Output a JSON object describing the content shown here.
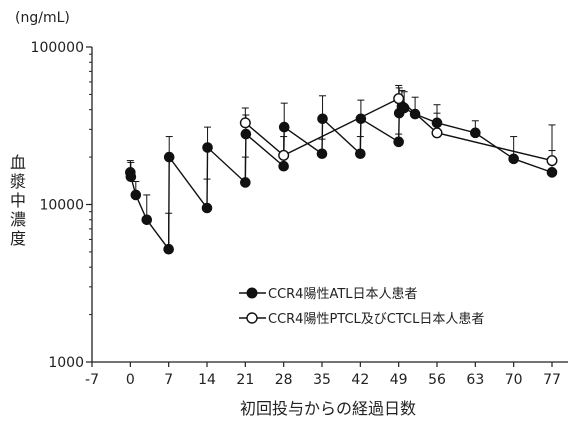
{
  "chart_data": {
    "type": "line",
    "y_unit_label": "(ng/mL)",
    "xlabel": "初回投与からの経過日数",
    "ylabel": "血漿中濃度",
    "y_scale": "log",
    "ylim": [
      1000,
      100000
    ],
    "y_ticks": [
      1000,
      10000,
      100000
    ],
    "y_tick_labels": [
      "1000",
      "10000",
      "100000"
    ],
    "xlim": [
      -7,
      80
    ],
    "x_ticks": [
      -7,
      0,
      7,
      14,
      21,
      28,
      35,
      42,
      49,
      56,
      63,
      70,
      77
    ],
    "x_tick_labels": [
      "-7",
      "0",
      "7",
      "14",
      "21",
      "28",
      "35",
      "42",
      "49",
      "56",
      "63",
      "70",
      "77"
    ],
    "legend_position": "lower-right",
    "series": [
      {
        "name": "CCR4陽性ATL日本人患者",
        "marker": "filled-circle",
        "color": "#111111",
        "points": [
          {
            "x": 0,
            "y": 16000,
            "err_up": 19000
          },
          {
            "x": 0.1,
            "y": 15000,
            "err_up": 18500
          },
          {
            "x": 1,
            "y": 11500,
            "err_up": 14000
          },
          {
            "x": 3,
            "y": 8000,
            "err_up": 11500
          },
          {
            "x": 7,
            "y": 5200,
            "err_up": 8800
          },
          {
            "x": 7.1,
            "y": 20000,
            "err_up": 27000
          },
          {
            "x": 14,
            "y": 9500,
            "err_up": 14500
          },
          {
            "x": 14.1,
            "y": 23000,
            "err_up": 31000
          },
          {
            "x": 21,
            "y": 13800,
            "err_up": 20000
          },
          {
            "x": 21.1,
            "y": 28000,
            "err_up": 37000
          },
          {
            "x": 28,
            "y": 17500,
            "err_up": 21000
          },
          {
            "x": 28.1,
            "y": 31000,
            "err_up": 44000
          },
          {
            "x": 35,
            "y": 21000,
            "err_up": 26000
          },
          {
            "x": 35.1,
            "y": 35000,
            "err_up": 49000
          },
          {
            "x": 42,
            "y": 21000,
            "err_up": 27000
          },
          {
            "x": 42.1,
            "y": 35000,
            "err_up": 46000
          },
          {
            "x": 49,
            "y": 25000,
            "err_up": 28000
          },
          {
            "x": 49.1,
            "y": 38000,
            "err_up": 55000
          },
          {
            "x": 49.6,
            "y": 42000,
            "err_up": 53000
          },
          {
            "x": 50,
            "y": 41000,
            "err_up": 52000
          },
          {
            "x": 52,
            "y": 37500,
            "err_up": 48000
          },
          {
            "x": 56,
            "y": 33000,
            "err_up": 43000
          },
          {
            "x": 63,
            "y": 28500,
            "err_up": 34000
          },
          {
            "x": 70,
            "y": 19500,
            "err_up": 27000
          },
          {
            "x": 77,
            "y": 16000,
            "err_up": 22000
          }
        ]
      },
      {
        "name": "CCR4陽性PTCL及びCTCL日本人患者",
        "marker": "open-circle",
        "color": "#111111",
        "points": [
          {
            "x": 21,
            "y": 33000,
            "err_up": 41000
          },
          {
            "x": 28,
            "y": 20500,
            "err_up": 27000
          },
          {
            "x": 49,
            "y": 47000,
            "err_up": 57000
          },
          {
            "x": 56,
            "y": 28500,
            "err_up": 38000
          },
          {
            "x": 77,
            "y": 19000,
            "err_up": 32000
          }
        ]
      }
    ]
  }
}
